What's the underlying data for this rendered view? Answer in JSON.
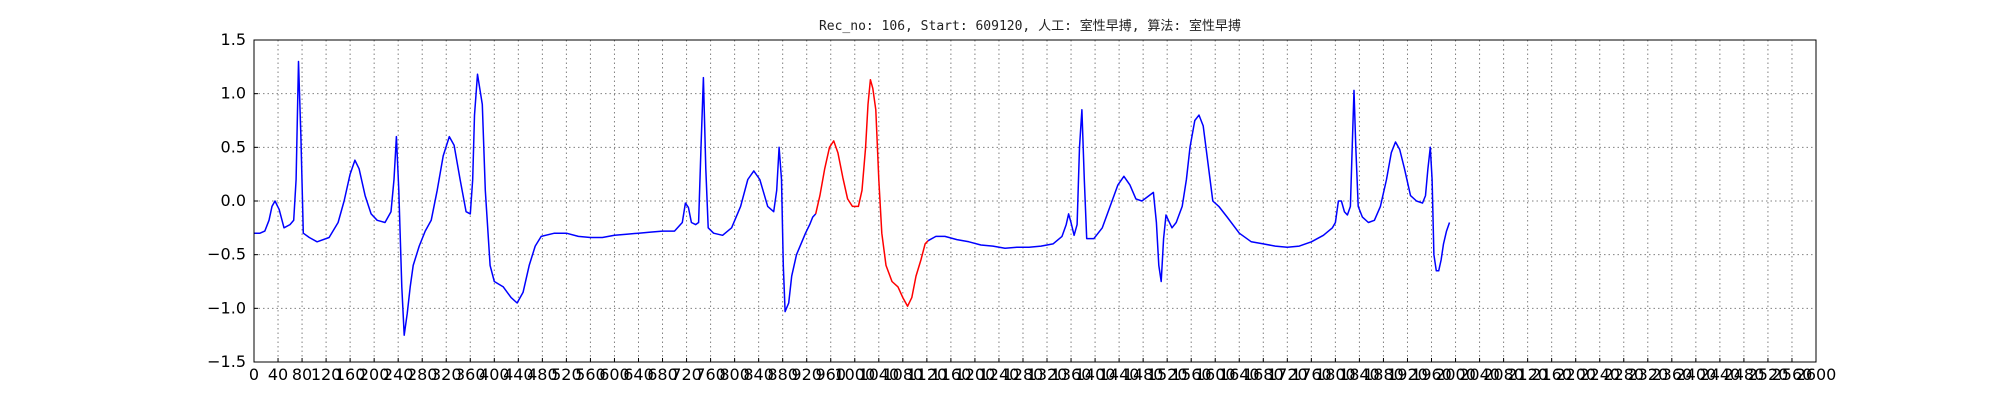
{
  "chart_data": {
    "type": "line",
    "title": "Rec_no: 106, Start: 609120, 人工: 室性早搏, 算法: 室性早搏",
    "xlabel": "",
    "ylabel": "",
    "xlim": [
      0,
      2600
    ],
    "ylim": [
      -1.5,
      1.5
    ],
    "grid": true,
    "x_ticks": [
      0,
      40,
      80,
      120,
      160,
      200,
      240,
      280,
      320,
      360,
      400,
      440,
      480,
      520,
      560,
      600,
      640,
      680,
      720,
      760,
      800,
      840,
      880,
      920,
      960,
      1000,
      1040,
      1080,
      1120,
      1160,
      1200,
      1240,
      1280,
      1320,
      1360,
      1400,
      1440,
      1480,
      1520,
      1560,
      1600,
      1640,
      1680,
      1720,
      1760,
      1800,
      1840,
      1880,
      1920,
      1960,
      2000,
      2040,
      2080,
      2120,
      2160,
      2200,
      2240,
      2280,
      2320,
      2360,
      2400,
      2440,
      2480,
      2520,
      2560,
      2600
    ],
    "x_tick_labels": [
      "0",
      "40",
      "80",
      "120",
      "160",
      "200",
      "240",
      "280",
      "320",
      "360",
      "400",
      "440",
      "480",
      "520",
      "560",
      "600",
      "640",
      "680",
      "720",
      "760",
      "800",
      "840",
      "880",
      "920",
      "960",
      "1000",
      "1040",
      "1080",
      "1120",
      "1160",
      "1200",
      "1240",
      "1280",
      "1320",
      "1360",
      "1400",
      "1440",
      "1480",
      "1520",
      "1560",
      "1600",
      "1640",
      "1680",
      "1720",
      "1760",
      "1800",
      "1840",
      "1880",
      "1920",
      "1960",
      "2000",
      "2040",
      "2080",
      "2120",
      "2160",
      "2200",
      "2240",
      "2280",
      "2320",
      "2360",
      "2400",
      "2440",
      "2480",
      "2520",
      "2560",
      "2600"
    ],
    "y_ticks": [
      1.5,
      1.0,
      0.5,
      0.0,
      -0.5,
      -1.0,
      -1.5
    ],
    "y_tick_labels": [
      "1.5",
      "1.0",
      "0.5",
      "0.0",
      "−0.5",
      "−1.0",
      "−1.5"
    ],
    "series": [
      {
        "color": "#0000ff",
        "points": [
          [
            0,
            -0.3
          ],
          [
            10,
            -0.3
          ],
          [
            18,
            -0.28
          ],
          [
            25,
            -0.18
          ],
          [
            30,
            -0.05
          ],
          [
            35,
            0.0
          ],
          [
            42,
            -0.08
          ],
          [
            50,
            -0.25
          ],
          [
            60,
            -0.22
          ],
          [
            66,
            -0.18
          ],
          [
            70,
            0.2
          ],
          [
            74,
            1.3
          ],
          [
            78,
            0.6
          ],
          [
            82,
            -0.3
          ],
          [
            92,
            -0.34
          ],
          [
            105,
            -0.38
          ],
          [
            125,
            -0.34
          ],
          [
            140,
            -0.2
          ],
          [
            150,
            0.0
          ],
          [
            160,
            0.25
          ],
          [
            168,
            0.38
          ],
          [
            175,
            0.3
          ],
          [
            185,
            0.05
          ],
          [
            195,
            -0.12
          ],
          [
            205,
            -0.18
          ],
          [
            218,
            -0.2
          ],
          [
            228,
            -0.1
          ],
          [
            233,
            0.2
          ],
          [
            237,
            0.6
          ],
          [
            241,
            0.1
          ],
          [
            246,
            -0.8
          ],
          [
            250,
            -1.25
          ],
          [
            255,
            -1.05
          ],
          [
            260,
            -0.8
          ],
          [
            265,
            -0.6
          ],
          [
            275,
            -0.42
          ],
          [
            285,
            -0.28
          ],
          [
            295,
            -0.18
          ],
          [
            305,
            0.1
          ],
          [
            315,
            0.42
          ],
          [
            325,
            0.6
          ],
          [
            333,
            0.52
          ],
          [
            343,
            0.2
          ],
          [
            353,
            -0.1
          ],
          [
            360,
            -0.12
          ],
          [
            364,
            0.2
          ],
          [
            367,
            0.8
          ],
          [
            372,
            1.18
          ],
          [
            380,
            0.9
          ],
          [
            385,
            0.1
          ],
          [
            393,
            -0.6
          ],
          [
            400,
            -0.75
          ],
          [
            415,
            -0.8
          ],
          [
            428,
            -0.9
          ],
          [
            438,
            -0.95
          ],
          [
            448,
            -0.85
          ],
          [
            458,
            -0.6
          ],
          [
            468,
            -0.42
          ],
          [
            478,
            -0.33
          ],
          [
            500,
            -0.3
          ],
          [
            520,
            -0.3
          ],
          [
            540,
            -0.33
          ],
          [
            560,
            -0.34
          ],
          [
            580,
            -0.34
          ],
          [
            600,
            -0.32
          ],
          [
            620,
            -0.31
          ],
          [
            640,
            -0.3
          ],
          [
            660,
            -0.29
          ],
          [
            680,
            -0.28
          ],
          [
            700,
            -0.28
          ],
          [
            713,
            -0.2
          ],
          [
            718,
            -0.02
          ],
          [
            723,
            -0.06
          ],
          [
            728,
            -0.2
          ],
          [
            735,
            -0.22
          ],
          [
            740,
            -0.2
          ],
          [
            744,
            0.5
          ],
          [
            748,
            1.15
          ],
          [
            752,
            0.3
          ],
          [
            756,
            -0.25
          ],
          [
            765,
            -0.3
          ],
          [
            780,
            -0.32
          ],
          [
            795,
            -0.25
          ],
          [
            810,
            -0.05
          ],
          [
            822,
            0.2
          ],
          [
            832,
            0.28
          ],
          [
            842,
            0.2
          ],
          [
            855,
            -0.05
          ],
          [
            865,
            -0.1
          ],
          [
            870,
            0.1
          ],
          [
            874,
            0.5
          ],
          [
            878,
            0.2
          ],
          [
            881,
            -0.6
          ],
          [
            884,
            -1.03
          ],
          [
            890,
            -0.95
          ],
          [
            895,
            -0.7
          ],
          [
            903,
            -0.5
          ],
          [
            918,
            -0.3
          ],
          [
            925,
            -0.22
          ],
          [
            930,
            -0.15
          ],
          [
            935,
            -0.12
          ]
        ]
      },
      {
        "color": "#ff0000",
        "points": [
          [
            935,
            -0.12
          ],
          [
            942,
            0.05
          ],
          [
            950,
            0.3
          ],
          [
            958,
            0.5
          ],
          [
            965,
            0.56
          ],
          [
            972,
            0.45
          ],
          [
            980,
            0.22
          ],
          [
            988,
            0.02
          ],
          [
            996,
            -0.05
          ],
          [
            1006,
            -0.05
          ],
          [
            1012,
            0.1
          ],
          [
            1018,
            0.5
          ],
          [
            1022,
            0.9
          ],
          [
            1026,
            1.13
          ],
          [
            1030,
            1.05
          ],
          [
            1035,
            0.85
          ],
          [
            1040,
            0.2
          ],
          [
            1045,
            -0.3
          ],
          [
            1052,
            -0.6
          ],
          [
            1062,
            -0.75
          ],
          [
            1072,
            -0.8
          ],
          [
            1080,
            -0.9
          ],
          [
            1088,
            -0.98
          ],
          [
            1095,
            -0.9
          ],
          [
            1102,
            -0.7
          ],
          [
            1110,
            -0.55
          ],
          [
            1117,
            -0.4
          ],
          [
            1122,
            -0.37
          ]
        ]
      },
      {
        "color": "#0000ff",
        "points": [
          [
            1122,
            -0.37
          ],
          [
            1135,
            -0.33
          ],
          [
            1150,
            -0.33
          ],
          [
            1170,
            -0.36
          ],
          [
            1190,
            -0.38
          ],
          [
            1210,
            -0.41
          ],
          [
            1230,
            -0.42
          ],
          [
            1250,
            -0.44
          ],
          [
            1270,
            -0.43
          ],
          [
            1290,
            -0.43
          ],
          [
            1310,
            -0.42
          ],
          [
            1330,
            -0.4
          ],
          [
            1345,
            -0.33
          ],
          [
            1352,
            -0.22
          ],
          [
            1356,
            -0.12
          ],
          [
            1360,
            -0.2
          ],
          [
            1365,
            -0.32
          ],
          [
            1370,
            -0.22
          ],
          [
            1374,
            0.5
          ],
          [
            1378,
            0.85
          ],
          [
            1382,
            0.2
          ],
          [
            1386,
            -0.35
          ],
          [
            1398,
            -0.35
          ],
          [
            1412,
            -0.25
          ],
          [
            1425,
            -0.05
          ],
          [
            1438,
            0.15
          ],
          [
            1448,
            0.23
          ],
          [
            1458,
            0.15
          ],
          [
            1468,
            0.02
          ],
          [
            1478,
            0.0
          ],
          [
            1490,
            0.05
          ],
          [
            1497,
            0.08
          ],
          [
            1502,
            -0.2
          ],
          [
            1506,
            -0.6
          ],
          [
            1510,
            -0.75
          ],
          [
            1514,
            -0.35
          ],
          [
            1518,
            -0.13
          ],
          [
            1522,
            -0.18
          ],
          [
            1528,
            -0.25
          ],
          [
            1535,
            -0.2
          ],
          [
            1545,
            -0.05
          ],
          [
            1552,
            0.2
          ],
          [
            1558,
            0.5
          ],
          [
            1566,
            0.75
          ],
          [
            1573,
            0.8
          ],
          [
            1580,
            0.7
          ],
          [
            1588,
            0.35
          ],
          [
            1596,
            0.0
          ],
          [
            1606,
            -0.05
          ],
          [
            1620,
            -0.15
          ],
          [
            1640,
            -0.3
          ],
          [
            1660,
            -0.38
          ],
          [
            1680,
            -0.4
          ],
          [
            1700,
            -0.42
          ],
          [
            1720,
            -0.43
          ],
          [
            1740,
            -0.42
          ],
          [
            1760,
            -0.38
          ],
          [
            1780,
            -0.32
          ],
          [
            1795,
            -0.25
          ],
          [
            1800,
            -0.2
          ],
          [
            1805,
            0.0
          ],
          [
            1810,
            0.0
          ],
          [
            1815,
            -0.1
          ],
          [
            1820,
            -0.13
          ],
          [
            1825,
            -0.05
          ],
          [
            1828,
            0.5
          ],
          [
            1831,
            1.03
          ],
          [
            1834,
            0.5
          ],
          [
            1838,
            -0.05
          ],
          [
            1845,
            -0.15
          ],
          [
            1855,
            -0.2
          ],
          [
            1865,
            -0.18
          ],
          [
            1875,
            -0.05
          ],
          [
            1885,
            0.2
          ],
          [
            1893,
            0.45
          ],
          [
            1900,
            0.55
          ],
          [
            1907,
            0.48
          ],
          [
            1915,
            0.3
          ],
          [
            1925,
            0.05
          ],
          [
            1935,
            0.0
          ],
          [
            1945,
            -0.02
          ],
          [
            1950,
            0.05
          ],
          [
            1954,
            0.3
          ],
          [
            1958,
            0.5
          ],
          [
            1961,
            0.2
          ],
          [
            1964,
            -0.5
          ],
          [
            1968,
            -0.65
          ],
          [
            1972,
            -0.65
          ],
          [
            1976,
            -0.55
          ],
          [
            1980,
            -0.4
          ],
          [
            1985,
            -0.28
          ],
          [
            1990,
            -0.2
          ]
        ]
      }
    ]
  }
}
